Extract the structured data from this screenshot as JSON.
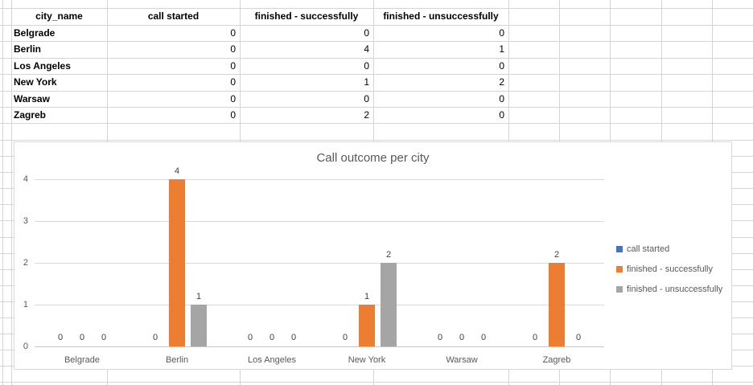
{
  "table": {
    "headers": [
      "city_name",
      "call started",
      "finished - successfully",
      "finished - unsuccessfully"
    ],
    "rows": [
      {
        "city": "Belgrade",
        "values": [
          "0",
          "0",
          "0"
        ]
      },
      {
        "city": "Berlin",
        "values": [
          "0",
          "4",
          "1"
        ]
      },
      {
        "city": "Los Angeles",
        "values": [
          "0",
          "0",
          "0"
        ]
      },
      {
        "city": "New York",
        "values": [
          "0",
          "1",
          "2"
        ]
      },
      {
        "city": "Warsaw",
        "values": [
          "0",
          "0",
          "0"
        ]
      },
      {
        "city": "Zagreb",
        "values": [
          "0",
          "2",
          "0"
        ]
      }
    ]
  },
  "chart_data": {
    "type": "bar",
    "title": "Call outcome per city",
    "categories": [
      "Belgrade",
      "Berlin",
      "Los Angeles",
      "New York",
      "Warsaw",
      "Zagreb"
    ],
    "series": [
      {
        "name": "call started",
        "color": "#4472C4",
        "values": [
          0,
          0,
          0,
          0,
          0,
          0
        ]
      },
      {
        "name": "finished - successfully",
        "color": "#ED7D31",
        "values": [
          0,
          4,
          0,
          1,
          0,
          2
        ]
      },
      {
        "name": "finished - unsuccessfully",
        "color": "#A5A5A5",
        "values": [
          0,
          1,
          0,
          2,
          0,
          0
        ]
      }
    ],
    "ylim": [
      0,
      4
    ],
    "yticks": [
      "0",
      "1",
      "2",
      "3",
      "4"
    ],
    "grid": true,
    "data_labels": true,
    "legend_position": "right"
  },
  "colors": {
    "sheet_gridline": "#d4d4d4",
    "chart_border": "#d9d9d9",
    "chart_gridline": "#d9d9d9",
    "title_text": "#595959",
    "axis_text": "#595959",
    "data_label_text": "#404040"
  }
}
